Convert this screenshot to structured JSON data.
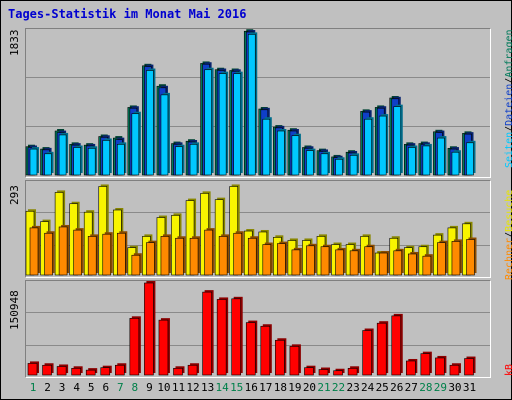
{
  "title": "Tages-Statistik im Monat Mai 2016",
  "colors": {
    "anfragen": "#007a5a",
    "dateien": "#0f3fc8",
    "seiten": "#00c8ff",
    "besuche": "#f8f400",
    "rechner": "#ff8a00",
    "kb": "#ff0000",
    "day_weekday": "#000000",
    "day_weekend": "#00804a"
  },
  "legend": {
    "anfragen": "Anfragen",
    "dateien": "Dateien",
    "seiten": "Seiten",
    "besuche": "Besuche",
    "rechner": "Rechner",
    "kb": "kB",
    "sep": "/"
  },
  "chart_data": [
    {
      "type": "bar",
      "name": "top",
      "ymax_label": "1833",
      "ylim": [
        0,
        1833
      ],
      "grid": true,
      "categories": [
        "1",
        "2",
        "3",
        "4",
        "5",
        "6",
        "7",
        "8",
        "9",
        "10",
        "11",
        "12",
        "13",
        "14",
        "15",
        "16",
        "17",
        "18",
        "19",
        "20",
        "21",
        "22",
        "23",
        "24",
        "25",
        "26",
        "27",
        "28",
        "29",
        "30",
        "31"
      ],
      "series": [
        {
          "name": "Anfragen",
          "values": [
            360,
            330,
            560,
            390,
            380,
            490,
            470,
            860,
            1390,
            1130,
            400,
            430,
            1420,
            1340,
            1330,
            1830,
            840,
            610,
            570,
            350,
            310,
            230,
            290,
            810,
            860,
            980,
            390,
            400,
            550,
            340,
            530
          ]
        },
        {
          "name": "Dateien",
          "values": [
            350,
            320,
            540,
            380,
            370,
            480,
            450,
            850,
            1380,
            1110,
            390,
            420,
            1410,
            1330,
            1320,
            1820,
            830,
            600,
            560,
            340,
            300,
            220,
            280,
            800,
            850,
            970,
            380,
            390,
            540,
            330,
            520
          ]
        },
        {
          "name": "Seiten",
          "values": [
            330,
            270,
            510,
            350,
            340,
            440,
            390,
            780,
            1330,
            1020,
            360,
            390,
            1340,
            1290,
            1290,
            1790,
            710,
            560,
            500,
            310,
            270,
            200,
            250,
            710,
            750,
            870,
            350,
            370,
            470,
            290,
            410
          ]
        }
      ]
    },
    {
      "type": "bar",
      "name": "middle",
      "ymax_label": "293",
      "ylim": [
        0,
        293
      ],
      "grid": true,
      "categories": [
        "1",
        "2",
        "3",
        "4",
        "5",
        "6",
        "7",
        "8",
        "9",
        "10",
        "11",
        "12",
        "13",
        "14",
        "15",
        "16",
        "17",
        "18",
        "19",
        "20",
        "21",
        "22",
        "23",
        "24",
        "25",
        "26",
        "27",
        "28",
        "29",
        "30",
        "31"
      ],
      "series": [
        {
          "name": "Besuche",
          "values": [
            203,
            170,
            263,
            227,
            200,
            282,
            207,
            87,
            123,
            183,
            190,
            237,
            260,
            240,
            282,
            140,
            137,
            120,
            110,
            110,
            123,
            97,
            97,
            123,
            70,
            117,
            87,
            90,
            127,
            150,
            163
          ]
        },
        {
          "name": "Rechner",
          "values": [
            150,
            133,
            153,
            143,
            123,
            130,
            133,
            63,
            103,
            123,
            117,
            117,
            143,
            123,
            133,
            117,
            97,
            100,
            80,
            93,
            90,
            80,
            77,
            90,
            70,
            77,
            67,
            60,
            103,
            107,
            113
          ]
        }
      ]
    },
    {
      "type": "bar",
      "name": "bottom",
      "ymax_label": "150948",
      "ylim": [
        0,
        150948
      ],
      "grid": true,
      "categories": [
        "1",
        "2",
        "3",
        "4",
        "5",
        "6",
        "7",
        "8",
        "9",
        "10",
        "11",
        "12",
        "13",
        "14",
        "15",
        "16",
        "17",
        "18",
        "19",
        "20",
        "21",
        "22",
        "23",
        "24",
        "25",
        "26",
        "27",
        "28",
        "29",
        "30",
        "31"
      ],
      "series": [
        {
          "name": "kB",
          "values": [
            19000,
            16000,
            14000,
            11000,
            8000,
            12000,
            16000,
            93000,
            150948,
            90000,
            11000,
            16000,
            136000,
            124000,
            125000,
            86000,
            80000,
            57000,
            47000,
            12000,
            9000,
            7000,
            11000,
            73000,
            85000,
            97000,
            23000,
            35000,
            28000,
            16000,
            27000
          ]
        }
      ]
    }
  ],
  "days": [
    "1",
    "2",
    "3",
    "4",
    "5",
    "6",
    "7",
    "8",
    "9",
    "10",
    "11",
    "12",
    "13",
    "14",
    "15",
    "16",
    "17",
    "18",
    "19",
    "20",
    "21",
    "22",
    "23",
    "24",
    "25",
    "26",
    "27",
    "28",
    "29",
    "30",
    "31"
  ],
  "weekend_days": [
    "1",
    "7",
    "8",
    "14",
    "15",
    "21",
    "22",
    "28",
    "29"
  ]
}
